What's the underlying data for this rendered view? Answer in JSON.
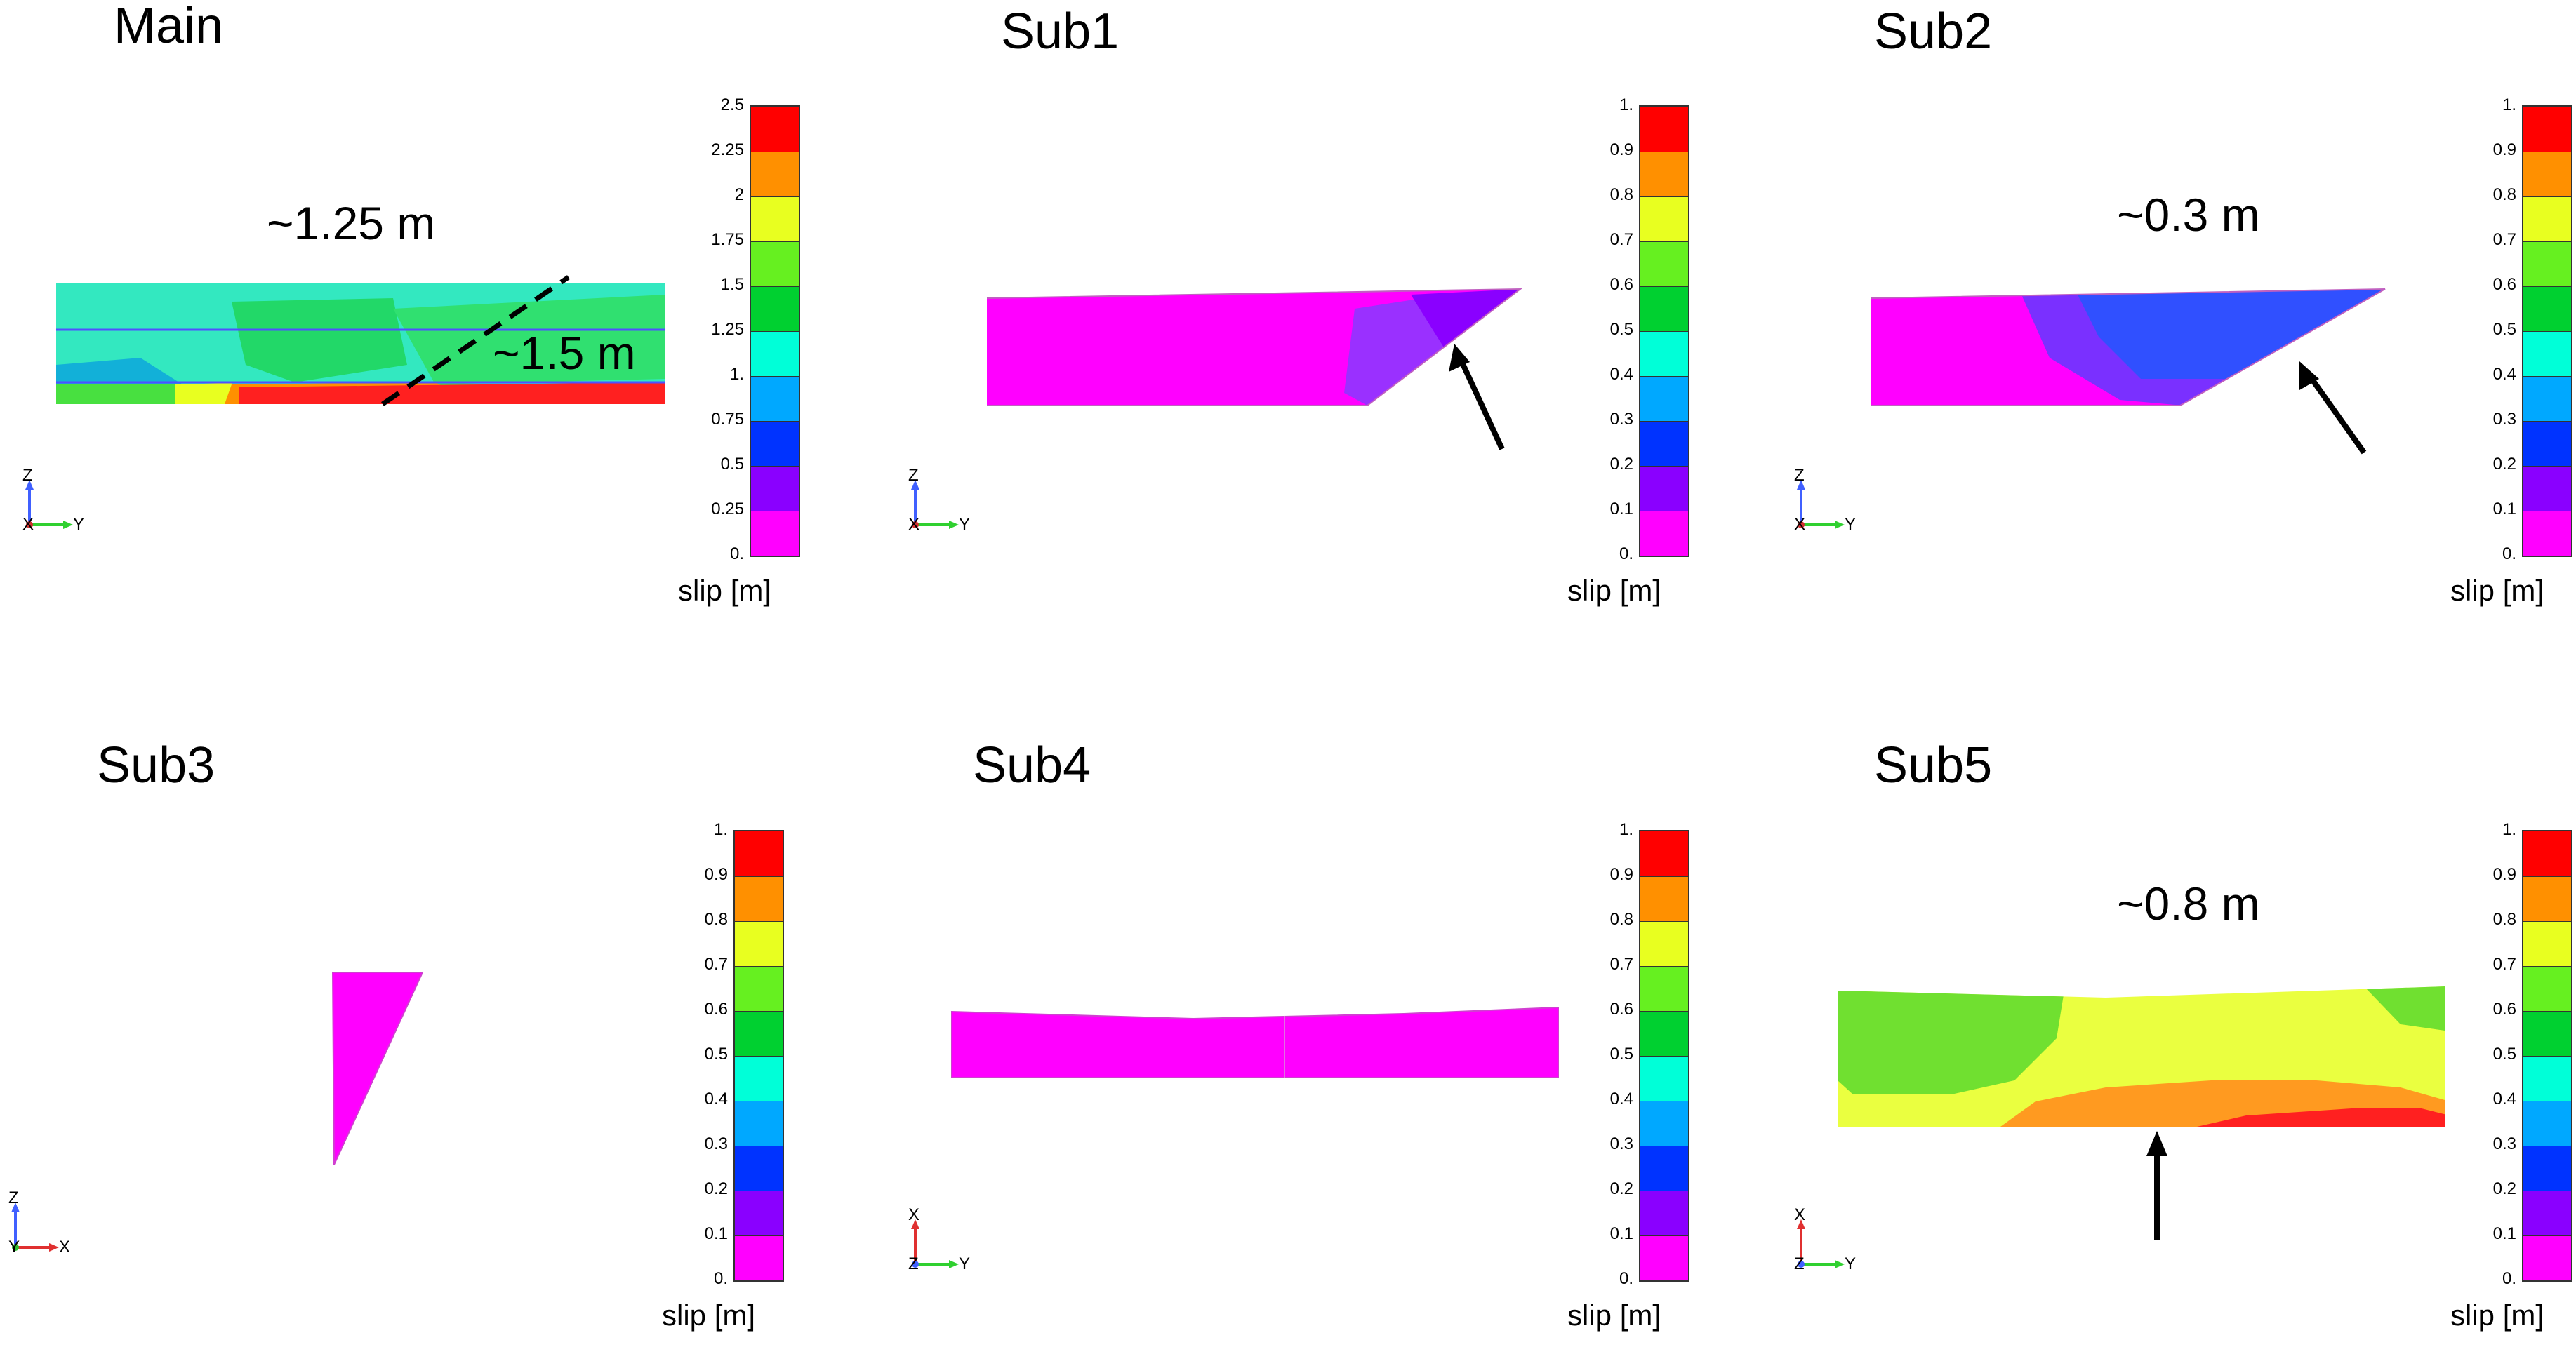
{
  "colors": {
    "scale": [
      "#ff00ff",
      "#8a00ff",
      "#0033ff",
      "#00a8ff",
      "#00ffd8",
      "#00d030",
      "#66f020",
      "#e8ff20",
      "#ff9000",
      "#ff0000"
    ],
    "arrow": "#000000"
  },
  "panels": [
    {
      "id": "main",
      "title": "Main",
      "colorbar": {
        "ticks": [
          "2.5",
          "2.25",
          "2",
          "1.75",
          "1.5",
          "1.25",
          "1.",
          "0.75",
          "0.5",
          "0.25",
          "0."
        ],
        "label": "slip [m]"
      },
      "annotations": [
        {
          "text": "~1.25 m"
        },
        {
          "text": "~1.5 m"
        }
      ],
      "axis": {
        "vertical": "Z",
        "horizontal": "Y",
        "out": "X"
      }
    },
    {
      "id": "sub1",
      "title": "Sub1",
      "colorbar": {
        "ticks": [
          "1.",
          "0.9",
          "0.8",
          "0.7",
          "0.6",
          "0.5",
          "0.4",
          "0.3",
          "0.2",
          "0.1",
          "0."
        ],
        "label": "slip [m]"
      },
      "annotations": [],
      "axis": {
        "vertical": "Z",
        "horizontal": "Y",
        "out": "X"
      }
    },
    {
      "id": "sub2",
      "title": "Sub2",
      "colorbar": {
        "ticks": [
          "1.",
          "0.9",
          "0.8",
          "0.7",
          "0.6",
          "0.5",
          "0.4",
          "0.3",
          "0.2",
          "0.1",
          "0."
        ],
        "label": "slip [m]"
      },
      "annotations": [
        {
          "text": "~0.3 m"
        }
      ],
      "axis": {
        "vertical": "Z",
        "horizontal": "Y",
        "out": "X"
      }
    },
    {
      "id": "sub3",
      "title": "Sub3",
      "colorbar": {
        "ticks": [
          "1.",
          "0.9",
          "0.8",
          "0.7",
          "0.6",
          "0.5",
          "0.4",
          "0.3",
          "0.2",
          "0.1",
          "0."
        ],
        "label": "slip [m]"
      },
      "annotations": [],
      "axis": {
        "vertical": "Z",
        "horizontal": "X",
        "out": "Y"
      }
    },
    {
      "id": "sub4",
      "title": "Sub4",
      "colorbar": {
        "ticks": [
          "1.",
          "0.9",
          "0.8",
          "0.7",
          "0.6",
          "0.5",
          "0.4",
          "0.3",
          "0.2",
          "0.1",
          "0."
        ],
        "label": "slip [m]"
      },
      "annotations": [],
      "axis": {
        "vertical": "X",
        "horizontal": "Y",
        "out": "Z"
      }
    },
    {
      "id": "sub5",
      "title": "Sub5",
      "colorbar": {
        "ticks": [
          "1.",
          "0.9",
          "0.8",
          "0.7",
          "0.6",
          "0.5",
          "0.4",
          "0.3",
          "0.2",
          "0.1",
          "0."
        ],
        "label": "slip [m]"
      },
      "annotations": [
        {
          "text": "~0.8 m"
        }
      ],
      "axis": {
        "vertical": "X",
        "horizontal": "Y",
        "out": "Z"
      }
    }
  ]
}
